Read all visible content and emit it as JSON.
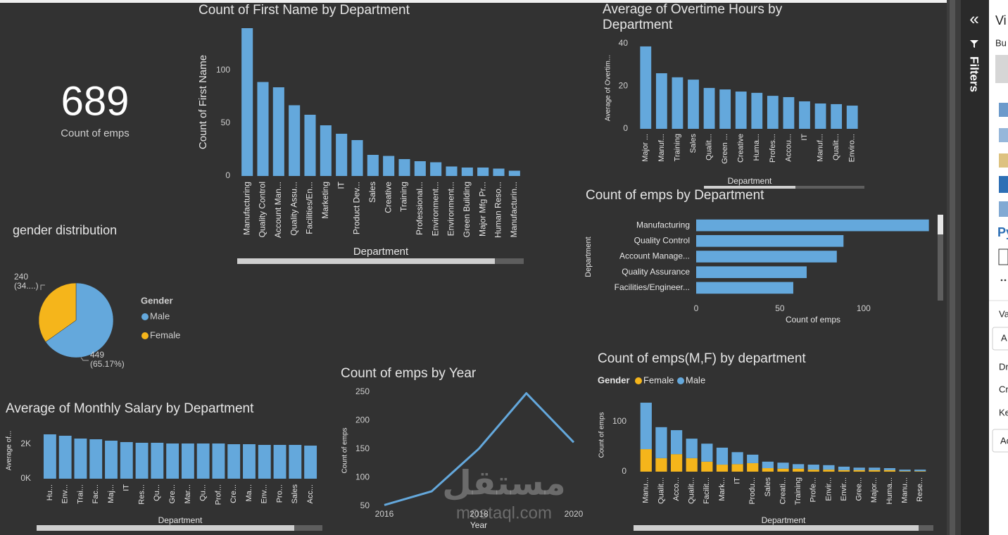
{
  "kpi": {
    "value": 689,
    "label": "Count of emps"
  },
  "chart_data": [
    {
      "type": "bar",
      "title": "Count of First Name by Department",
      "x_label": "Department",
      "y_label": "Count of First Name",
      "categories": [
        "Manufacturing",
        "Quality Control",
        "Account Man...",
        "Quality Assu...",
        "Facilities/En...",
        "Marketing",
        "IT",
        "Product Dev...",
        "Sales",
        "Creative",
        "Training",
        "Professional...",
        "Environment...",
        "Environment...",
        "Green Building",
        "Major Mfg Pr...",
        "Human Reso...",
        "Manufacturin..."
      ],
      "values": [
        140,
        89,
        84,
        67,
        58,
        48,
        40,
        34,
        20,
        19,
        16,
        14,
        13,
        9,
        8,
        8,
        7,
        5
      ],
      "color": "#64a8dc",
      "ylim": [
        0,
        140
      ],
      "yticks": [
        0,
        50,
        100
      ]
    },
    {
      "type": "bar",
      "title": "Average of Overtime Hours by Department",
      "x_label": "Department",
      "y_label": "Average of Overtim...",
      "categories": [
        "Major ...",
        "Manuf...",
        "Training",
        "Sales",
        "Qualit...",
        "Green ...",
        "Creative",
        "Huma...",
        "Profes...",
        "Accou...",
        "IT",
        "Manuf...",
        "Qualit...",
        "Enviro..."
      ],
      "values": [
        38.7,
        26.1,
        24.2,
        23.1,
        19.2,
        18.5,
        17.5,
        16.9,
        15.5,
        14.9,
        12.9,
        11.9,
        11.6,
        10.9
      ],
      "color": "#64a8dc",
      "ylim": [
        0,
        40
      ],
      "yticks": [
        0,
        20,
        40
      ]
    },
    {
      "type": "bar",
      "orientation": "horizontal",
      "title": "Count of emps by Department",
      "x_label": "Count of emps",
      "y_label": "Department",
      "categories": [
        "Manufacturing",
        "Quality Control",
        "Account Manage...",
        "Quality Assurance",
        "Facilities/Engineer..."
      ],
      "values": [
        139,
        88,
        84,
        66,
        58
      ],
      "color": "#64a8dc",
      "xlim": [
        0,
        140
      ],
      "xticks": [
        0,
        50,
        100
      ]
    },
    {
      "type": "pie",
      "title": "gender distribution",
      "legend_title": "Gender",
      "categories": [
        "Male",
        "Female"
      ],
      "values": [
        449,
        240
      ],
      "value_labels": [
        "449\n(65.17%)",
        "240\n(34....)"
      ],
      "colors": [
        "#64a8dc",
        "#f5b51b"
      ]
    },
    {
      "type": "bar",
      "title": "Average of Monthly Salary by Department",
      "x_label": "Department",
      "y_label": "Average of...",
      "categories": [
        "Hu...",
        "Env...",
        "Trai...",
        "Fac...",
        "Maj...",
        "IT",
        "Res...",
        "Qu...",
        "Gre...",
        "Mar...",
        "Qu...",
        "Prof...",
        "Cre...",
        "Ma...",
        "Env...",
        "Pro...",
        "Sales",
        "Acc..."
      ],
      "values": [
        2571,
        2490,
        2327,
        2286,
        2204,
        2122,
        2082,
        2082,
        2041,
        2041,
        2041,
        2041,
        2000,
        2000,
        1959,
        1959,
        1959,
        1918
      ],
      "color": "#64a8dc",
      "ylim": [
        0,
        3000
      ],
      "yticks": [
        {
          "value": 0,
          "label": "0K"
        },
        {
          "value": 2000,
          "label": "2K"
        }
      ]
    },
    {
      "type": "line",
      "title": "Count of emps by Year",
      "x_label": "Year",
      "y_label": "Count of emps",
      "x": [
        2016,
        2017,
        2018,
        2019,
        2020
      ],
      "values": [
        52,
        76,
        151,
        248,
        162
      ],
      "color": "#64a8dc",
      "xlim": [
        2016,
        2020
      ],
      "xticks": [
        2016,
        2018,
        2020
      ],
      "ylim": [
        50,
        250
      ],
      "yticks": [
        50,
        100,
        150,
        200,
        250
      ]
    },
    {
      "type": "stacked_bar",
      "title": "Count of emps(M,F) by department",
      "x_label": "Department",
      "y_label": "Count of emps",
      "legend_title": "Gender",
      "categories": [
        "Manu...",
        "Qualit...",
        "Acco...",
        "Qualit...",
        "Facilit...",
        "Mark...",
        "IT",
        "Produ...",
        "Sales",
        "Creati...",
        "Training",
        "Profe...",
        "Envir...",
        "Envir...",
        "Gree...",
        "Major...",
        "Huma...",
        "Manu...",
        "Rese..."
      ],
      "series": [
        {
          "name": "Female",
          "color": "#f5b51b",
          "values": [
            45,
            27,
            35,
            27,
            20,
            14,
            15,
            17,
            7,
            6,
            6,
            4,
            4,
            3,
            3,
            3,
            3,
            1,
            1
          ]
        },
        {
          "name": "Male",
          "color": "#64a8dc",
          "values": [
            93,
            62,
            48,
            39,
            36,
            34,
            24,
            17,
            13,
            12,
            9,
            10,
            9,
            7,
            5,
            5,
            4,
            3,
            3
          ]
        }
      ],
      "ylim": [
        0,
        140
      ],
      "yticks": [
        0,
        100
      ]
    }
  ],
  "side_pane": {
    "collapse": "«",
    "filters": "Filters",
    "visualizations": "Vi",
    "build": "Bu",
    "python": "Py",
    "values": "Va",
    "field_a": "A",
    "drill": "Dr",
    "cross": "Cr",
    "keep": "Ke",
    "field_ac": "Ac"
  },
  "watermark": {
    "arabic": "مستقل",
    "latin": "mostaql.com"
  }
}
